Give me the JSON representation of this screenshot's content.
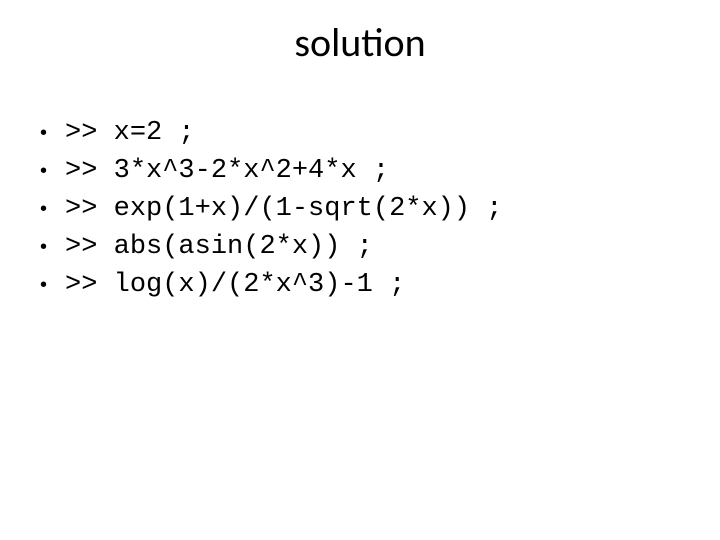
{
  "title": "solution",
  "title_fontsize": 40,
  "background_color": "#ffffff",
  "text_color": "#000000",
  "bullet_font": "Consolas, 'Courier New', monospace",
  "bullet_fontsize": 27,
  "items": [
    {
      "text": ">> x=2 ;"
    },
    {
      "text": ">> 3*x^3-2*x^2+4*x ;"
    },
    {
      "text": ">> exp(1+x)/(1-sqrt(2*x)) ;"
    },
    {
      "text": ">> abs(asin(2*x)) ;"
    },
    {
      "text": ">> log(x)/(2*x^3)-1 ;"
    }
  ]
}
